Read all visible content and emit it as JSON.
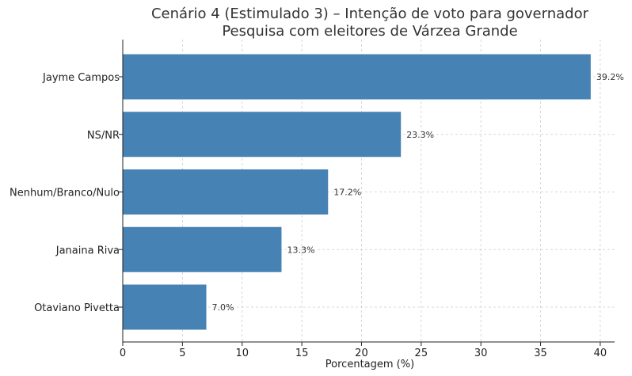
{
  "chart_data": {
    "type": "bar",
    "orientation": "horizontal",
    "title": "Cenário 4 (Estimulado 3) – Intenção de voto para governador",
    "subtitle": "Pesquisa com eleitores de Várzea Grande",
    "xlabel": "Porcentagem (%)",
    "ylabel": "",
    "categories": [
      "Jayme Campos",
      "NS/NR",
      "Nenhum/Branco/Nulo",
      "Janaina Riva",
      "Otaviano Pivetta"
    ],
    "values": [
      39.2,
      23.3,
      17.2,
      13.3,
      7.0
    ],
    "data_labels": [
      "39.2%",
      "23.3%",
      "17.2%",
      "13.3%",
      "7.0%"
    ],
    "xlim": [
      0,
      41.2
    ],
    "xticks": [
      0,
      5,
      10,
      15,
      20,
      25,
      30,
      35,
      40
    ],
    "grid": true,
    "bar_color": "#4682b4"
  }
}
